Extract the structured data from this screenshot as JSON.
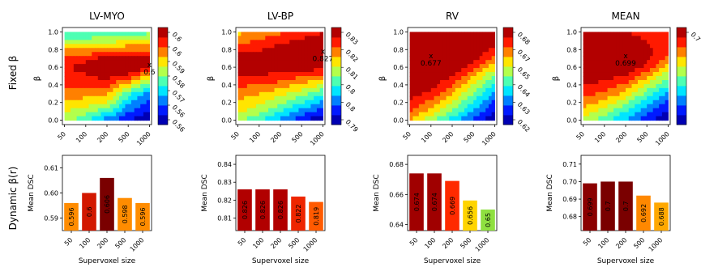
{
  "row_labels": [
    "Fixed β",
    "Dynamic β(r)"
  ],
  "x_ticks": [
    "50",
    "100",
    "200",
    "500",
    "1000"
  ],
  "contour_ylabel": "β",
  "contour_yticks": [
    "0.0",
    "0.2",
    "0.4",
    "0.6",
    "0.8",
    "1.0"
  ],
  "bar_ylabel": "Mean DSC",
  "bar_xlabel": "Supervoxel size",
  "chart_data": [
    {
      "type": "heatmap",
      "title": "LV-MYO",
      "x": [
        50,
        100,
        200,
        500,
        1000
      ],
      "y": [
        0.0,
        0.1,
        0.2,
        0.3,
        0.4,
        0.5,
        0.6,
        0.7,
        0.8,
        0.9,
        1.0
      ],
      "z": [
        [
          0.585,
          0.58,
          0.57,
          0.565,
          0.56
        ],
        [
          0.588,
          0.585,
          0.58,
          0.57,
          0.565
        ],
        [
          0.592,
          0.59,
          0.588,
          0.575,
          0.568
        ],
        [
          0.595,
          0.594,
          0.593,
          0.58,
          0.572
        ],
        [
          0.598,
          0.598,
          0.599,
          0.59,
          0.58
        ],
        [
          0.6,
          0.601,
          0.603,
          0.6,
          0.59
        ],
        [
          0.601,
          0.603,
          0.606,
          0.606,
          0.604
        ],
        [
          0.598,
          0.6,
          0.603,
          0.605,
          0.603
        ],
        [
          0.592,
          0.592,
          0.595,
          0.596,
          0.596
        ],
        [
          0.585,
          0.585,
          0.586,
          0.587,
          0.588
        ],
        [
          0.578,
          0.578,
          0.578,
          0.58,
          0.582
        ]
      ],
      "marker": {
        "x": 1000,
        "y": 0.6,
        "label": "0.6"
      },
      "colorbar_ticks": [
        "0.6",
        "0.6",
        "0.59",
        "0.58",
        "0.57",
        "0.56",
        "0.56"
      ]
    },
    {
      "type": "heatmap",
      "title": "LV-BP",
      "x": [
        50,
        100,
        200,
        500,
        1000
      ],
      "y": [
        0.0,
        0.1,
        0.2,
        0.3,
        0.4,
        0.5,
        0.6,
        0.7,
        0.8,
        0.9,
        1.0
      ],
      "z": [
        [
          0.81,
          0.805,
          0.8,
          0.795,
          0.79
        ],
        [
          0.813,
          0.81,
          0.805,
          0.8,
          0.795
        ],
        [
          0.815,
          0.813,
          0.81,
          0.805,
          0.8
        ],
        [
          0.818,
          0.816,
          0.813,
          0.81,
          0.805
        ],
        [
          0.82,
          0.82,
          0.818,
          0.815,
          0.812
        ],
        [
          0.823,
          0.823,
          0.822,
          0.82,
          0.818
        ],
        [
          0.825,
          0.826,
          0.826,
          0.826,
          0.825
        ],
        [
          0.825,
          0.826,
          0.827,
          0.827,
          0.827
        ],
        [
          0.822,
          0.823,
          0.825,
          0.826,
          0.827
        ],
        [
          0.818,
          0.82,
          0.822,
          0.824,
          0.825
        ],
        [
          0.815,
          0.817,
          0.819,
          0.821,
          0.823
        ]
      ],
      "marker": {
        "x": 1000,
        "y": 0.75,
        "label": "0.827"
      },
      "colorbar_ticks": [
        "0.83",
        "0.82",
        "0.81",
        "0.8",
        "0.8",
        "0.79"
      ]
    },
    {
      "type": "heatmap",
      "title": "RV",
      "x": [
        50,
        100,
        200,
        500,
        1000
      ],
      "y": [
        0.0,
        0.1,
        0.2,
        0.3,
        0.4,
        0.5,
        0.6,
        0.7,
        0.8,
        0.9,
        1.0
      ],
      "z": [
        [
          0.66,
          0.65,
          0.64,
          0.63,
          0.62
        ],
        [
          0.666,
          0.658,
          0.648,
          0.636,
          0.626
        ],
        [
          0.67,
          0.664,
          0.654,
          0.642,
          0.63
        ],
        [
          0.674,
          0.67,
          0.66,
          0.648,
          0.636
        ],
        [
          0.676,
          0.674,
          0.666,
          0.654,
          0.642
        ],
        [
          0.677,
          0.676,
          0.672,
          0.66,
          0.648
        ],
        [
          0.677,
          0.677,
          0.676,
          0.668,
          0.656
        ],
        [
          0.677,
          0.677,
          0.677,
          0.674,
          0.664
        ],
        [
          0.677,
          0.677,
          0.677,
          0.676,
          0.67
        ],
        [
          0.677,
          0.677,
          0.677,
          0.677,
          0.674
        ],
        [
          0.677,
          0.677,
          0.677,
          0.677,
          0.676
        ]
      ],
      "marker": {
        "x": 100,
        "y": 0.7,
        "label": "0.677"
      },
      "colorbar_ticks": [
        "0.68",
        "0.67",
        "0.65",
        "0.64",
        "0.63",
        "0.62"
      ]
    },
    {
      "type": "heatmap",
      "title": "MEAN",
      "x": [
        50,
        100,
        200,
        500,
        1000
      ],
      "y": [
        0.0,
        0.1,
        0.2,
        0.3,
        0.4,
        0.5,
        0.6,
        0.7,
        0.8,
        0.9,
        1.0
      ],
      "z": [
        [
          0.67,
          0.66,
          0.65,
          0.64,
          0.63
        ],
        [
          0.676,
          0.668,
          0.658,
          0.646,
          0.636
        ],
        [
          0.682,
          0.676,
          0.666,
          0.654,
          0.642
        ],
        [
          0.688,
          0.684,
          0.676,
          0.662,
          0.65
        ],
        [
          0.692,
          0.69,
          0.684,
          0.67,
          0.658
        ],
        [
          0.696,
          0.695,
          0.692,
          0.68,
          0.666
        ],
        [
          0.698,
          0.698,
          0.698,
          0.69,
          0.676
        ],
        [
          0.699,
          0.699,
          0.699,
          0.694,
          0.684
        ],
        [
          0.698,
          0.698,
          0.698,
          0.694,
          0.688
        ],
        [
          0.695,
          0.695,
          0.695,
          0.692,
          0.688
        ],
        [
          0.692,
          0.692,
          0.692,
          0.69,
          0.688
        ]
      ],
      "marker": {
        "x": 200,
        "y": 0.7,
        "label": "0.699"
      },
      "colorbar_ticks": [
        "0.7"
      ]
    },
    {
      "type": "bar",
      "categories": [
        "50",
        "100",
        "200",
        "500",
        "1000"
      ],
      "values": [
        0.596,
        0.6,
        0.606,
        0.598,
        0.596
      ],
      "value_labels": [
        "0.596",
        "0.6",
        "0.606",
        "0.598",
        "0.596"
      ],
      "ylim": [
        0.585,
        0.615
      ],
      "yticks": [
        "0.59",
        "0.60",
        "0.61"
      ],
      "colors": [
        "#ff8c00",
        "#d21800",
        "#7a0000",
        "#ff8c00",
        "#ff8c00"
      ]
    },
    {
      "type": "bar",
      "categories": [
        "50",
        "100",
        "200",
        "500",
        "1000"
      ],
      "values": [
        0.826,
        0.826,
        0.826,
        0.822,
        0.819
      ],
      "value_labels": [
        "0.826",
        "0.826",
        "0.826",
        "0.822",
        "0.819"
      ],
      "ylim": [
        0.803,
        0.845
      ],
      "yticks": [
        "0.81",
        "0.82",
        "0.83",
        "0.84"
      ],
      "colors": [
        "#b10000",
        "#b10000",
        "#b10000",
        "#ee2600",
        "#ff5a00"
      ]
    },
    {
      "type": "bar",
      "categories": [
        "50",
        "100",
        "200",
        "500",
        "1000"
      ],
      "values": [
        0.674,
        0.674,
        0.669,
        0.656,
        0.65
      ],
      "value_labels": [
        "0.674",
        "0.674",
        "0.669",
        "0.656",
        "0.65"
      ],
      "ylim": [
        0.636,
        0.686
      ],
      "yticks": [
        "0.64",
        "0.66",
        "0.68"
      ],
      "colors": [
        "#a00000",
        "#a00000",
        "#ff2a00",
        "#ffd400",
        "#8fe040"
      ]
    },
    {
      "type": "bar",
      "categories": [
        "50",
        "100",
        "200",
        "500",
        "1000"
      ],
      "values": [
        0.699,
        0.7,
        0.7,
        0.692,
        0.688
      ],
      "value_labels": [
        "0.699",
        "0.7",
        "0.7",
        "0.692",
        "0.688"
      ],
      "ylim": [
        0.672,
        0.715
      ],
      "yticks": [
        "0.68",
        "0.69",
        "0.70",
        "0.71"
      ],
      "colors": [
        "#8b0000",
        "#7a0000",
        "#7a0000",
        "#ff8800",
        "#ffa800"
      ]
    }
  ]
}
